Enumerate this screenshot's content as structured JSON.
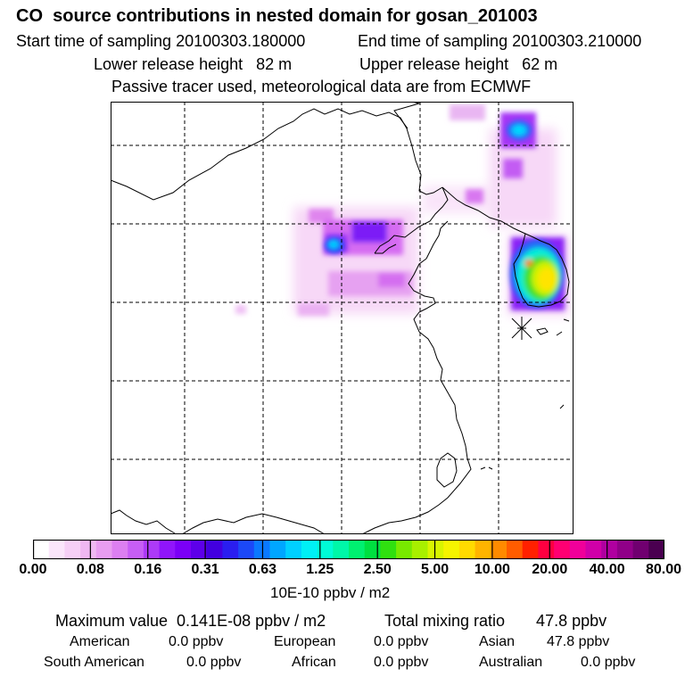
{
  "header": {
    "title": "CO  source contributions in nested domain for gosan_201003",
    "start_label": "Start time of sampling 20100303.180000",
    "end_label": "End time of sampling 20100303.210000",
    "lower_release": "Lower release height   82 m",
    "upper_release": "Upper release height   62 m",
    "tracer_note": "Passive tracer used, meteorological data are from ECMWF"
  },
  "map": {
    "receptor_marker": "asterisk"
  },
  "colorbar": {
    "colors": [
      "#ffffff",
      "#fbe6fb",
      "#f6d0f6",
      "#efb8f2",
      "#e89df0",
      "#dc7ff1",
      "#c75ef5",
      "#ad3af8",
      "#9015fb",
      "#7b00f8",
      "#5d00ea",
      "#4200e0",
      "#2a1ef0",
      "#1c48f8",
      "#0a78ff",
      "#00a6ff",
      "#00d0ff",
      "#00f0f6",
      "#00fcd6",
      "#00f8a8",
      "#00f070",
      "#00e040",
      "#30e010",
      "#78ea00",
      "#a8f000",
      "#d8f500",
      "#f6f400",
      "#ffda00",
      "#ffb400",
      "#ff8a00",
      "#ff5c00",
      "#ff2000",
      "#ff0040",
      "#ff0072",
      "#f0009a",
      "#d000a8",
      "#b000a0",
      "#900088",
      "#700070",
      "#4a0050"
    ],
    "labels": [
      "0.00",
      "0.08",
      "0.16",
      "0.31",
      "0.63",
      "1.25",
      "2.50",
      "5.00",
      "10.00",
      "20.00",
      "40.00",
      "80.00"
    ],
    "units": "10E-10 ppbv / m2"
  },
  "summary": {
    "max_label": "Maximum value  0.141E-08 ppbv / m2",
    "total_label": "Total mixing ratio       47.8 ppbv",
    "regions": [
      {
        "name": "American",
        "value": "0.0 ppbv"
      },
      {
        "name": "European",
        "value": "0.0 ppbv"
      },
      {
        "name": "Asian",
        "value": "47.8 ppbv"
      },
      {
        "name": "South American",
        "value": "0.0 ppbv"
      },
      {
        "name": "African",
        "value": "0.0 ppbv"
      },
      {
        "name": "Australian",
        "value": "0.0 ppbv"
      }
    ]
  }
}
